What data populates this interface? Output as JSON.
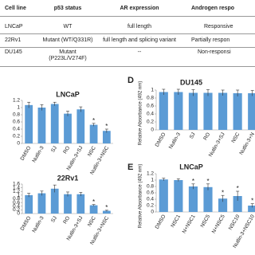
{
  "table": {
    "header": [
      "Cell line",
      "p53 status",
      "AR expression",
      "Androgen respo"
    ],
    "rows": [
      [
        "LNCaP",
        "WT",
        "full length",
        "Responsive"
      ],
      [
        "22Rv1",
        "Mutant (WT/Q331R)",
        "full length and splicing variant",
        "Partially respon"
      ],
      [
        "DU145",
        "Mutant\n(P223L/V274F)",
        "--",
        "Non-responsi"
      ]
    ]
  },
  "chart_data": [
    {
      "type": "bar",
      "title": "LNCaP",
      "color": "#5b9bd5",
      "categories": [
        "DMSO",
        "Nutlin-3",
        "SJ",
        "RO",
        "Nutlin-3+SJ",
        "NSC",
        "Nutlin-3+NSC"
      ],
      "values": [
        1.07,
        1.0,
        1.1,
        0.83,
        0.95,
        0.52,
        0.35
      ],
      "errors": [
        0.08,
        0.08,
        0.05,
        0.07,
        0.07,
        0.04,
        0.05
      ],
      "annotations": [
        null,
        null,
        null,
        null,
        null,
        "*",
        "*"
      ],
      "ylim": [
        0,
        1.2
      ],
      "yticks": [
        0,
        0.2,
        0.4,
        0.6,
        0.8,
        1,
        1.2
      ]
    },
    {
      "type": "bar",
      "title": "22Rv1",
      "color": "#5b9bd5",
      "categories": [
        "DMSO",
        "Nutlin-3",
        "SJ",
        "RO",
        "Nutlin-3+SJ",
        "NSC",
        "Nutlin-3+NSC"
      ],
      "values": [
        1.0,
        1.1,
        1.35,
        1.05,
        1.05,
        0.45,
        0.15
      ],
      "errors": [
        0.1,
        0.12,
        0.2,
        0.12,
        0.1,
        0.04,
        0.03
      ],
      "annotations": [
        null,
        null,
        null,
        null,
        null,
        "*",
        "*"
      ],
      "ylim": [
        0,
        1.6
      ],
      "yticks": [
        0,
        0.2,
        0.4,
        0.6,
        0.8,
        1,
        1.2,
        1.4,
        1.6
      ]
    },
    {
      "type": "bar",
      "panel": "D",
      "title": "DU145",
      "color": "#5b9bd5",
      "ylabel": "Relative Absorbance (492 nm)",
      "categories": [
        "DMSO",
        "Nutlin-3",
        "SJ",
        "RO",
        "Nutlin-3+SJ",
        "NSC",
        "Nutlin-3+N"
      ],
      "values": [
        0.95,
        0.95,
        0.93,
        0.93,
        0.93,
        0.92,
        0.92
      ],
      "errors": [
        0.07,
        0.07,
        0.08,
        0.08,
        0.07,
        0.08,
        0.07
      ],
      "annotations": [
        null,
        null,
        null,
        null,
        null,
        null,
        null
      ],
      "ylim": [
        0,
        1
      ],
      "yticks": [
        0,
        0.2,
        0.4,
        0.6,
        0.8,
        1
      ]
    },
    {
      "type": "bar",
      "panel": "E",
      "title": "LNCaP",
      "color": "#5b9bd5",
      "ylabel": "Relative Absorbance (492 nm)",
      "categories": [
        "DMSO",
        "NSC1",
        "N+NSC1",
        "NSC5",
        "N+NSC5",
        "NSC10",
        "Nutlin-3+NSC10"
      ],
      "values": [
        1.02,
        1.0,
        0.8,
        0.78,
        0.42,
        0.5,
        0.2
      ],
      "errors": [
        0.04,
        0.04,
        0.08,
        0.1,
        0.1,
        0.15,
        0.06
      ],
      "annotations": [
        null,
        null,
        "*",
        "*",
        "*",
        "*",
        "*"
      ],
      "ylim": [
        0,
        1.2
      ],
      "yticks": [
        0,
        0.2,
        0.4,
        0.6,
        0.8,
        1,
        1.2
      ]
    }
  ]
}
